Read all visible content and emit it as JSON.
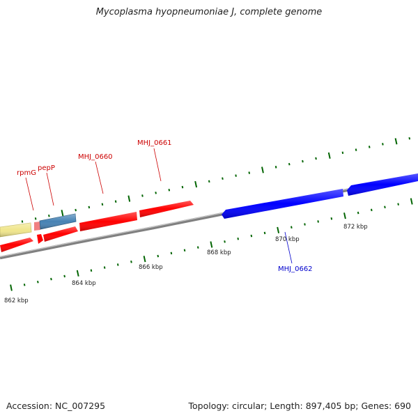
{
  "title": "Mycoplasma hyopneumoniae J, complete genome",
  "footer": {
    "accession": "Accession: NC_007295",
    "topology": "Topology: circular; Length: 897,405 bp; Genes: 690"
  },
  "colors": {
    "forward_gene": "#ff0000",
    "reverse_gene": "#0000ff",
    "trna": "#f08080",
    "rrna": "#4682b4",
    "other": "#f0e68c",
    "tick": "#006400",
    "backbone": "#808080"
  },
  "chart_data": {
    "type": "genome-map",
    "scale_labels": [
      "862 kbp",
      "864 kbp",
      "866 kbp",
      "868 kbp",
      "870 kbp",
      "872 kbp"
    ],
    "gene_labels": [
      {
        "text": "rpmG",
        "color": "#cc0000"
      },
      {
        "text": "pepP",
        "color": "#cc0000"
      },
      {
        "text": "MHJ_0660",
        "color": "#cc0000"
      },
      {
        "text": "MHJ_0661",
        "color": "#cc0000"
      },
      {
        "text": "MHJ_0662",
        "color": "#0000cc"
      }
    ]
  }
}
